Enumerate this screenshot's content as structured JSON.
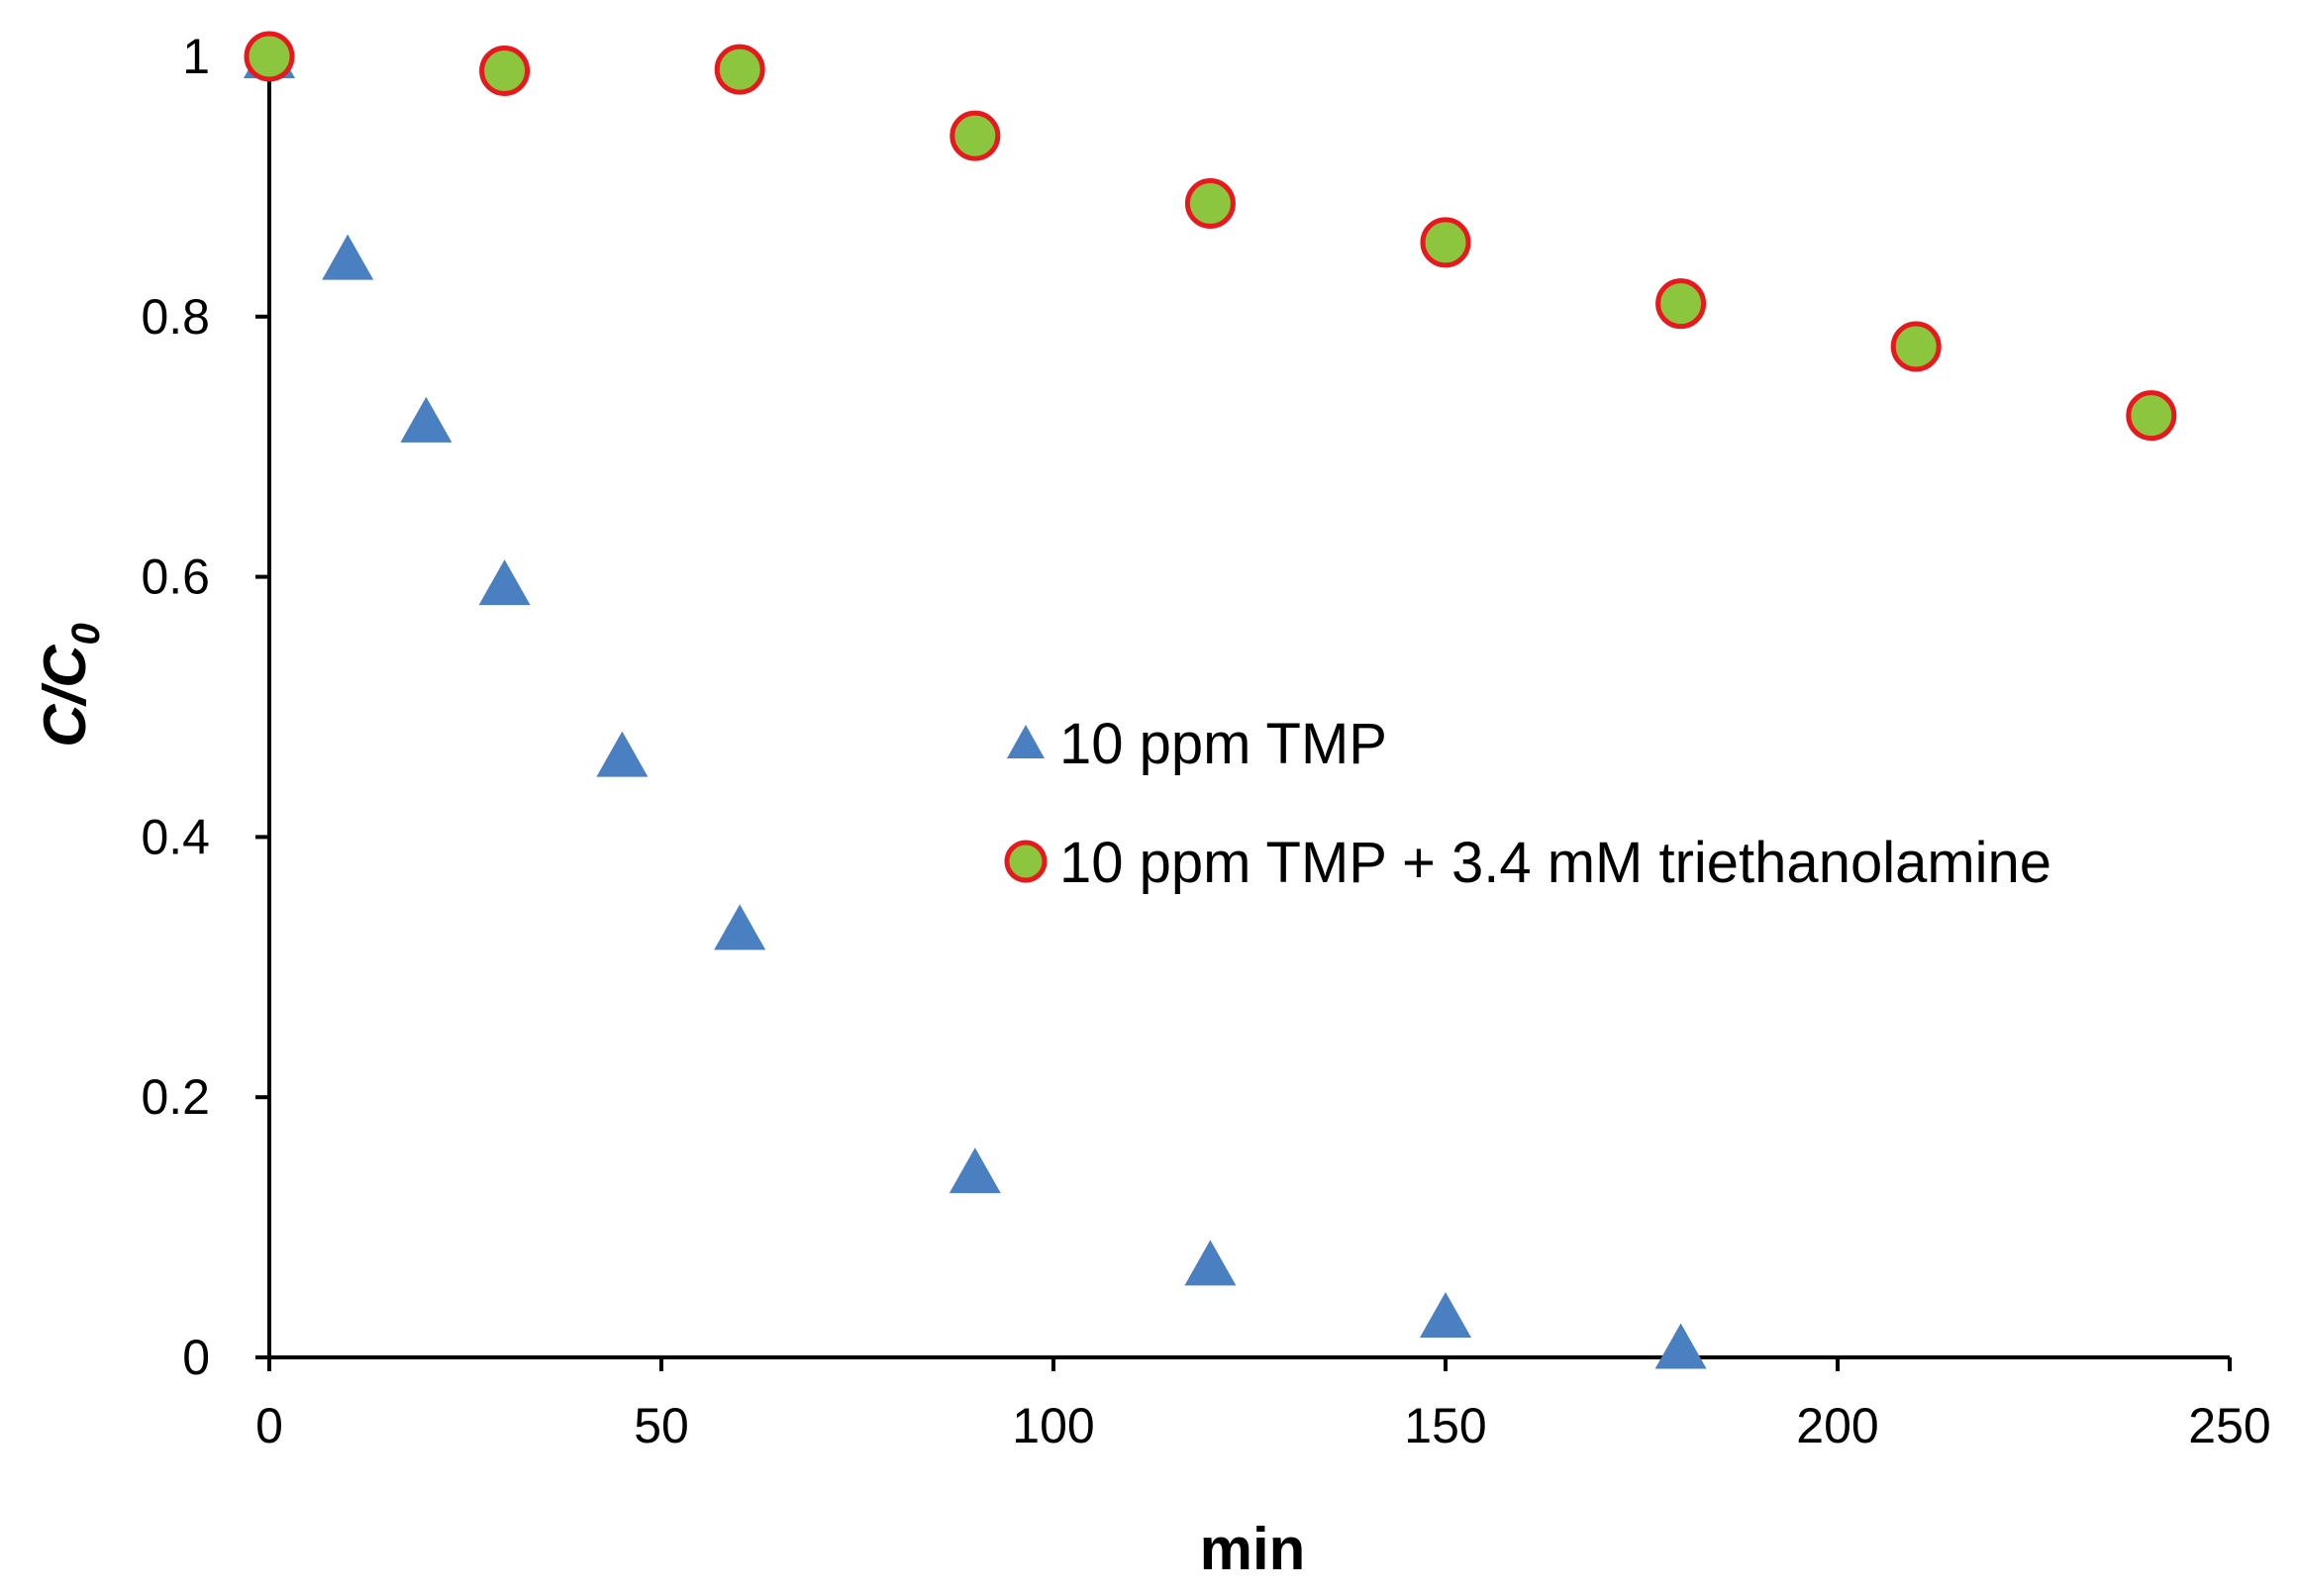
{
  "chart_data": {
    "type": "scatter",
    "title": "",
    "xlabel": "min",
    "ylabel_main": "C/C",
    "ylabel_sub": "0",
    "xlim": [
      0,
      250
    ],
    "ylim": [
      0,
      1
    ],
    "x_ticks": [
      0,
      50,
      100,
      150,
      200,
      250
    ],
    "y_ticks": [
      0,
      0.2,
      0.4,
      0.6,
      0.8,
      1
    ],
    "x_tick_labels": [
      "0",
      "50",
      "100",
      "150",
      "200",
      "250"
    ],
    "y_tick_labels": [
      "0",
      "0.2",
      "0.4",
      "0.6",
      "0.8",
      "1"
    ],
    "grid": false,
    "legend_position": "center-right",
    "series": [
      {
        "name": "10 ppm TMP",
        "marker": "triangle",
        "color": "#4a7fc1",
        "x": [
          0,
          10,
          20,
          30,
          45,
          60,
          90,
          120,
          150,
          180
        ],
        "y": [
          1.0,
          0.845,
          0.72,
          0.595,
          0.463,
          0.33,
          0.143,
          0.072,
          0.032,
          0.008
        ]
      },
      {
        "name": "10 ppm TMP + 3.4 mM triethanolamine",
        "marker": "circle",
        "color": "#8cc63f",
        "edge_color": "#e8191e",
        "x": [
          0,
          30,
          60,
          90,
          120,
          150,
          180,
          210,
          240
        ],
        "y": [
          1.0,
          0.989,
          0.99,
          0.939,
          0.887,
          0.857,
          0.81,
          0.777,
          0.724
        ]
      }
    ]
  }
}
